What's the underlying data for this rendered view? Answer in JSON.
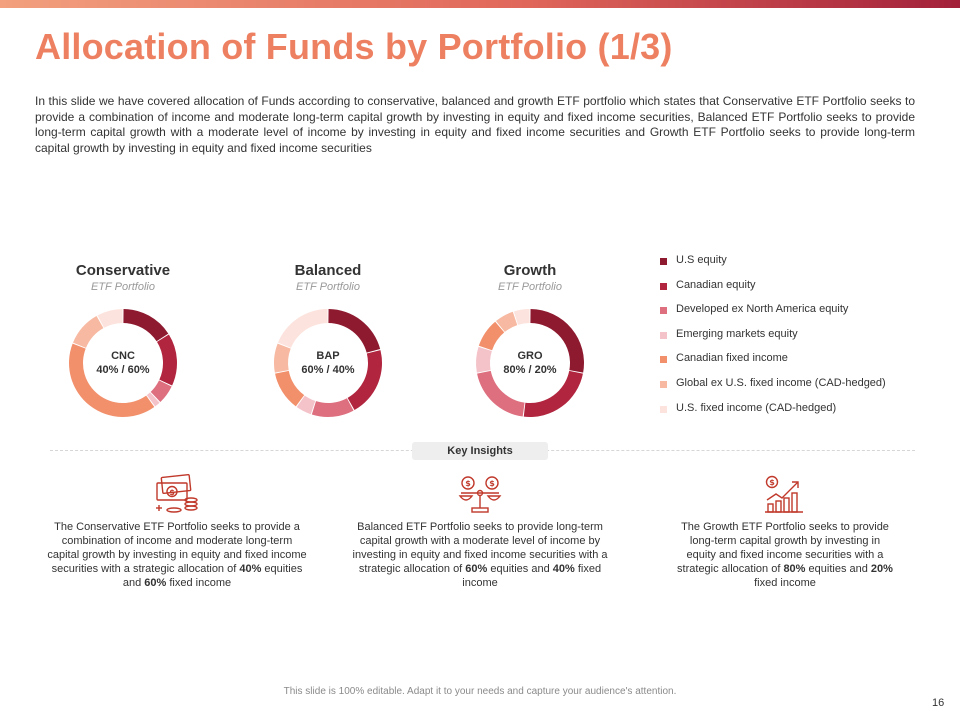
{
  "title": "Allocation of Funds by Portfolio (1/3)",
  "intro": "In this slide we have covered  allocation of Funds according to conservative,  balanced and growth ETF portfolio which states that Conservative  ETF Portfolio seeks to provide  a combination of income and moderate  long-term  capital growth by investing in equity and fixed income securities, Balanced ETF Portfolio seeks to provide  long-term capital growth  with a moderate  level of income by investing in equity and fixed income securities and Growth ETF Portfolio seeks to provide  long-term capital growth  by investing in equity and fixed income securities",
  "colors": {
    "accent": "#ee8062",
    "us_equity": "#8e1a30",
    "canadian_equity": "#b1253f",
    "developed_ex_na_equity": "#de6f7f",
    "emerging_markets_equity": "#f4c3ca",
    "canadian_fixed_income": "#f2906c",
    "global_ex_us_fixed_income": "#f7b9a1",
    "us_fixed_income": "#fde3dd"
  },
  "legend": [
    {
      "label": "U.S equity",
      "color": "#8e1a30"
    },
    {
      "label": "Canadian equity",
      "color": "#b1253f"
    },
    {
      "label": "Developed ex North America equity",
      "color": "#de6f7f"
    },
    {
      "label": "Emerging markets equity",
      "color": "#f4c3ca"
    },
    {
      "label": "Canadian fixed income",
      "color": "#f2906c"
    },
    {
      "label": "Global ex U.S. fixed income (CAD-hedged)",
      "color": "#f7b9a1"
    },
    {
      "label": "U.S. fixed income (CAD-hedged)",
      "color": "#fde3dd"
    }
  ],
  "chart_data": [
    {
      "type": "pie",
      "title": "Conservative",
      "subtitle": "ETF Portfolio",
      "center_code": "CNC",
      "center_ratio": "40% / 60%",
      "categories": [
        "U.S equity",
        "Canadian equity",
        "Developed ex North America equity",
        "Emerging markets equity",
        "Canadian fixed income",
        "Global ex U.S. fixed income (CAD-hedged)",
        "U.S. fixed income (CAD-hedged)"
      ],
      "values": [
        16,
        16,
        6,
        2,
        41,
        11,
        8
      ]
    },
    {
      "type": "pie",
      "title": "Balanced",
      "subtitle": "ETF Portfolio",
      "center_code": "BAP",
      "center_ratio": "60% / 40%",
      "categories": [
        "U.S equity",
        "Canadian equity",
        "Developed ex North America equity",
        "Emerging markets equity",
        "Canadian fixed income",
        "Global ex U.S. fixed income (CAD-hedged)",
        "U.S. fixed income (CAD-hedged)"
      ],
      "values": [
        21,
        21,
        13,
        5,
        12,
        9,
        19
      ]
    },
    {
      "type": "pie",
      "title": "Growth",
      "subtitle": "ETF Portfolio",
      "center_code": "GRO",
      "center_ratio": "80% / 20%",
      "categories": [
        "U.S equity",
        "Canadian equity",
        "Developed ex North America equity",
        "Emerging markets equity",
        "Canadian fixed income",
        "Global ex U.S. fixed income (CAD-hedged)",
        "U.S. fixed income (CAD-hedged)"
      ],
      "values": [
        28,
        24,
        20,
        8,
        9,
        6,
        5
      ]
    }
  ],
  "key_insights_label": "Key Insights",
  "insights": [
    {
      "icon": "money-icon",
      "text_start": "The Conservative ETF Portfolio seeks to provide a combination of income and moderate long-term capital growth by investing in equity and fixed income securities with a strategic allocation of ",
      "equity_pct": "40%",
      "text_mid": " equities and ",
      "fixed_pct": "60%",
      "text_end": " fixed income"
    },
    {
      "icon": "balance-scale-icon",
      "text_start": "Balanced ETF Portfolio seeks to provide long-term capital growth with a moderate level of income by investing in equity and fixed income securities with a strategic allocation of ",
      "equity_pct": "60%",
      "text_mid": " equities and ",
      "fixed_pct": "40%",
      "text_end": " fixed income"
    },
    {
      "icon": "growth-chart-icon",
      "text_start": "The Growth ETF Portfolio seeks to provide long-term capital growth by investing in equity and fixed income securities with a strategic allocation of ",
      "equity_pct": "80%",
      "text_mid": " equities and ",
      "fixed_pct": "20%",
      "text_end": " fixed income"
    }
  ],
  "footer": "This slide is 100% editable. Adapt it to your needs and capture your audience's attention.",
  "page_number": "16"
}
